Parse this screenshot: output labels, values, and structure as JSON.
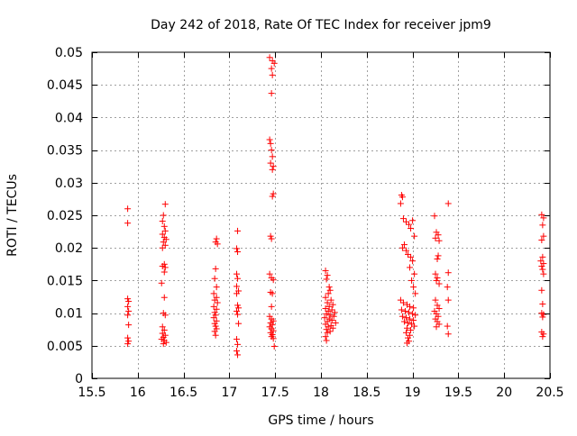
{
  "chart_data": {
    "type": "scatter",
    "title": "Day 242 of 2018, Rate Of TEC Index for receiver jpm9",
    "xlabel": "GPS time / hours",
    "ylabel": "ROTI / TECUs",
    "xlim": [
      15.5,
      20.5
    ],
    "ylim": [
      0,
      0.05
    ],
    "xticks": [
      15.5,
      16,
      16.5,
      17,
      17.5,
      18,
      18.5,
      19,
      19.5,
      20,
      20.5
    ],
    "xtick_labels": [
      "15.5",
      "16",
      "16.5",
      "17",
      "17.5",
      "18",
      "18.5",
      "19",
      "19.5",
      "20",
      "20.5"
    ],
    "yticks": [
      0,
      0.005,
      0.01,
      0.015,
      0.02,
      0.025,
      0.03,
      0.035,
      0.04,
      0.045,
      0.05
    ],
    "ytick_labels": [
      "0",
      "0.005",
      "0.01",
      "0.015",
      "0.02",
      "0.025",
      "0.03",
      "0.035",
      "0.04",
      "0.045",
      "0.05"
    ],
    "grid": true,
    "marker": "+",
    "marker_color": "#ff0000",
    "series": [
      {
        "name": "jpm9",
        "points": [
          [
            15.89,
            0.026
          ],
          [
            15.89,
            0.0238
          ],
          [
            15.89,
            0.0122
          ],
          [
            15.9,
            0.0118
          ],
          [
            15.89,
            0.011
          ],
          [
            15.9,
            0.0103
          ],
          [
            15.89,
            0.0097
          ],
          [
            15.9,
            0.0082
          ],
          [
            15.89,
            0.0062
          ],
          [
            15.9,
            0.0057
          ],
          [
            15.89,
            0.0053
          ],
          [
            16.3,
            0.0267
          ],
          [
            16.28,
            0.025
          ],
          [
            16.27,
            0.0241
          ],
          [
            16.29,
            0.0233
          ],
          [
            16.3,
            0.0226
          ],
          [
            16.27,
            0.0221
          ],
          [
            16.29,
            0.0216
          ],
          [
            16.31,
            0.0213
          ],
          [
            16.28,
            0.0209
          ],
          [
            16.3,
            0.0204
          ],
          [
            16.27,
            0.02
          ],
          [
            16.29,
            0.0175
          ],
          [
            16.27,
            0.0172
          ],
          [
            16.3,
            0.017
          ],
          [
            16.29,
            0.0163
          ],
          [
            16.26,
            0.0146
          ],
          [
            16.29,
            0.0124
          ],
          [
            16.28,
            0.01
          ],
          [
            16.3,
            0.0097
          ],
          [
            16.27,
            0.0079
          ],
          [
            16.29,
            0.0074
          ],
          [
            16.27,
            0.0069
          ],
          [
            16.3,
            0.0066
          ],
          [
            16.28,
            0.0063
          ],
          [
            16.26,
            0.006
          ],
          [
            16.29,
            0.0058
          ],
          [
            16.31,
            0.0055
          ],
          [
            16.28,
            0.0053
          ],
          [
            16.86,
            0.0214
          ],
          [
            16.85,
            0.0209
          ],
          [
            16.87,
            0.0206
          ],
          [
            16.85,
            0.0168
          ],
          [
            16.84,
            0.0153
          ],
          [
            16.86,
            0.014
          ],
          [
            16.83,
            0.013
          ],
          [
            16.86,
            0.0124
          ],
          [
            16.84,
            0.012
          ],
          [
            16.87,
            0.0116
          ],
          [
            16.83,
            0.011
          ],
          [
            16.86,
            0.0106
          ],
          [
            16.84,
            0.0101
          ],
          [
            16.85,
            0.0097
          ],
          [
            16.83,
            0.0093
          ],
          [
            16.86,
            0.0088
          ],
          [
            16.84,
            0.0084
          ],
          [
            16.85,
            0.008
          ],
          [
            16.86,
            0.0076
          ],
          [
            16.84,
            0.0072
          ],
          [
            16.85,
            0.0066
          ],
          [
            17.09,
            0.0226
          ],
          [
            17.08,
            0.0199
          ],
          [
            17.09,
            0.0194
          ],
          [
            17.08,
            0.016
          ],
          [
            17.09,
            0.0153
          ],
          [
            17.08,
            0.0141
          ],
          [
            17.1,
            0.0134
          ],
          [
            17.08,
            0.013
          ],
          [
            17.09,
            0.0112
          ],
          [
            17.1,
            0.0108
          ],
          [
            17.08,
            0.0103
          ],
          [
            17.09,
            0.0098
          ],
          [
            17.1,
            0.0084
          ],
          [
            17.08,
            0.006
          ],
          [
            17.09,
            0.0052
          ],
          [
            17.08,
            0.0042
          ],
          [
            17.09,
            0.0036
          ],
          [
            17.44,
            0.0492
          ],
          [
            17.47,
            0.0487
          ],
          [
            17.49,
            0.0483
          ],
          [
            17.46,
            0.0475
          ],
          [
            17.47,
            0.0465
          ],
          [
            17.46,
            0.0437
          ],
          [
            17.44,
            0.0366
          ],
          [
            17.45,
            0.036
          ],
          [
            17.46,
            0.035
          ],
          [
            17.47,
            0.034
          ],
          [
            17.45,
            0.033
          ],
          [
            17.48,
            0.0325
          ],
          [
            17.47,
            0.032
          ],
          [
            17.48,
            0.0283
          ],
          [
            17.47,
            0.0279
          ],
          [
            17.45,
            0.0218
          ],
          [
            17.46,
            0.0214
          ],
          [
            17.44,
            0.016
          ],
          [
            17.46,
            0.0154
          ],
          [
            17.48,
            0.0151
          ],
          [
            17.45,
            0.0132
          ],
          [
            17.47,
            0.013
          ],
          [
            17.46,
            0.011
          ],
          [
            17.44,
            0.0095
          ],
          [
            17.46,
            0.0091
          ],
          [
            17.48,
            0.0088
          ],
          [
            17.45,
            0.0085
          ],
          [
            17.47,
            0.0082
          ],
          [
            17.44,
            0.0079
          ],
          [
            17.46,
            0.0076
          ],
          [
            17.48,
            0.0073
          ],
          [
            17.45,
            0.007
          ],
          [
            17.47,
            0.0067
          ],
          [
            17.46,
            0.0064
          ],
          [
            17.48,
            0.0061
          ],
          [
            17.49,
            0.0049
          ],
          [
            18.05,
            0.0165
          ],
          [
            18.07,
            0.0158
          ],
          [
            18.06,
            0.0152
          ],
          [
            18.09,
            0.014
          ],
          [
            18.1,
            0.0135
          ],
          [
            18.08,
            0.013
          ],
          [
            18.05,
            0.0124
          ],
          [
            18.11,
            0.012
          ],
          [
            18.07,
            0.0116
          ],
          [
            18.13,
            0.0113
          ],
          [
            18.09,
            0.011
          ],
          [
            18.05,
            0.0107
          ],
          [
            18.12,
            0.0105
          ],
          [
            18.08,
            0.0103
          ],
          [
            18.15,
            0.0101
          ],
          [
            18.06,
            0.0099
          ],
          [
            18.1,
            0.0097
          ],
          [
            18.14,
            0.0095
          ],
          [
            18.04,
            0.0093
          ],
          [
            18.09,
            0.0091
          ],
          [
            18.12,
            0.0089
          ],
          [
            18.07,
            0.0087
          ],
          [
            18.16,
            0.0085
          ],
          [
            18.05,
            0.0083
          ],
          [
            18.11,
            0.0081
          ],
          [
            18.08,
            0.0079
          ],
          [
            18.13,
            0.0077
          ],
          [
            18.06,
            0.0075
          ],
          [
            18.1,
            0.0072
          ],
          [
            18.07,
            0.007
          ],
          [
            18.05,
            0.0064
          ],
          [
            18.06,
            0.0058
          ],
          [
            18.88,
            0.0281
          ],
          [
            18.89,
            0.0278
          ],
          [
            18.87,
            0.0268
          ],
          [
            18.9,
            0.0245
          ],
          [
            18.93,
            0.024
          ],
          [
            18.96,
            0.0236
          ],
          [
            19.0,
            0.0242
          ],
          [
            18.98,
            0.023
          ],
          [
            19.02,
            0.0218
          ],
          [
            18.91,
            0.0205
          ],
          [
            18.89,
            0.02
          ],
          [
            18.93,
            0.0196
          ],
          [
            18.95,
            0.019
          ],
          [
            18.98,
            0.0186
          ],
          [
            19.0,
            0.018
          ],
          [
            18.97,
            0.017
          ],
          [
            19.02,
            0.016
          ],
          [
            18.99,
            0.015
          ],
          [
            19.01,
            0.014
          ],
          [
            19.03,
            0.013
          ],
          [
            18.87,
            0.012
          ],
          [
            18.9,
            0.0116
          ],
          [
            18.94,
            0.0113
          ],
          [
            18.97,
            0.011
          ],
          [
            19.01,
            0.0108
          ],
          [
            18.88,
            0.0105
          ],
          [
            18.92,
            0.0103
          ],
          [
            18.96,
            0.0101
          ],
          [
            19.0,
            0.0099
          ],
          [
            19.03,
            0.0097
          ],
          [
            18.89,
            0.0095
          ],
          [
            18.93,
            0.0093
          ],
          [
            18.97,
            0.0091
          ],
          [
            19.01,
            0.0089
          ],
          [
            18.91,
            0.0087
          ],
          [
            18.95,
            0.0085
          ],
          [
            18.99,
            0.0083
          ],
          [
            19.02,
            0.008
          ],
          [
            18.94,
            0.0077
          ],
          [
            18.98,
            0.0074
          ],
          [
            18.93,
            0.007
          ],
          [
            18.97,
            0.0066
          ],
          [
            18.95,
            0.0062
          ],
          [
            18.96,
            0.0057
          ],
          [
            18.94,
            0.0054
          ],
          [
            19.24,
            0.0249
          ],
          [
            19.26,
            0.0224
          ],
          [
            19.28,
            0.022
          ],
          [
            19.25,
            0.0215
          ],
          [
            19.29,
            0.0211
          ],
          [
            19.28,
            0.0188
          ],
          [
            19.27,
            0.0183
          ],
          [
            19.25,
            0.016
          ],
          [
            19.27,
            0.0154
          ],
          [
            19.26,
            0.015
          ],
          [
            19.29,
            0.0145
          ],
          [
            19.25,
            0.012
          ],
          [
            19.27,
            0.0112
          ],
          [
            19.29,
            0.0107
          ],
          [
            19.24,
            0.0103
          ],
          [
            19.26,
            0.0099
          ],
          [
            19.28,
            0.0095
          ],
          [
            19.25,
            0.0091
          ],
          [
            19.27,
            0.0087
          ],
          [
            19.29,
            0.0083
          ],
          [
            19.26,
            0.0079
          ],
          [
            19.39,
            0.0268
          ],
          [
            19.39,
            0.0162
          ],
          [
            19.38,
            0.014
          ],
          [
            19.39,
            0.012
          ],
          [
            19.38,
            0.008
          ],
          [
            19.39,
            0.0068
          ],
          [
            20.41,
            0.0251
          ],
          [
            20.43,
            0.0246
          ],
          [
            20.42,
            0.0235
          ],
          [
            20.43,
            0.0218
          ],
          [
            20.41,
            0.0212
          ],
          [
            20.42,
            0.0186
          ],
          [
            20.4,
            0.018
          ],
          [
            20.43,
            0.0176
          ],
          [
            20.41,
            0.0172
          ],
          [
            20.42,
            0.0167
          ],
          [
            20.43,
            0.016
          ],
          [
            20.41,
            0.0135
          ],
          [
            20.42,
            0.0114
          ],
          [
            20.41,
            0.01
          ],
          [
            20.43,
            0.0098
          ],
          [
            20.42,
            0.0094
          ],
          [
            20.41,
            0.0071
          ],
          [
            20.43,
            0.0068
          ],
          [
            20.42,
            0.0064
          ]
        ]
      }
    ]
  }
}
